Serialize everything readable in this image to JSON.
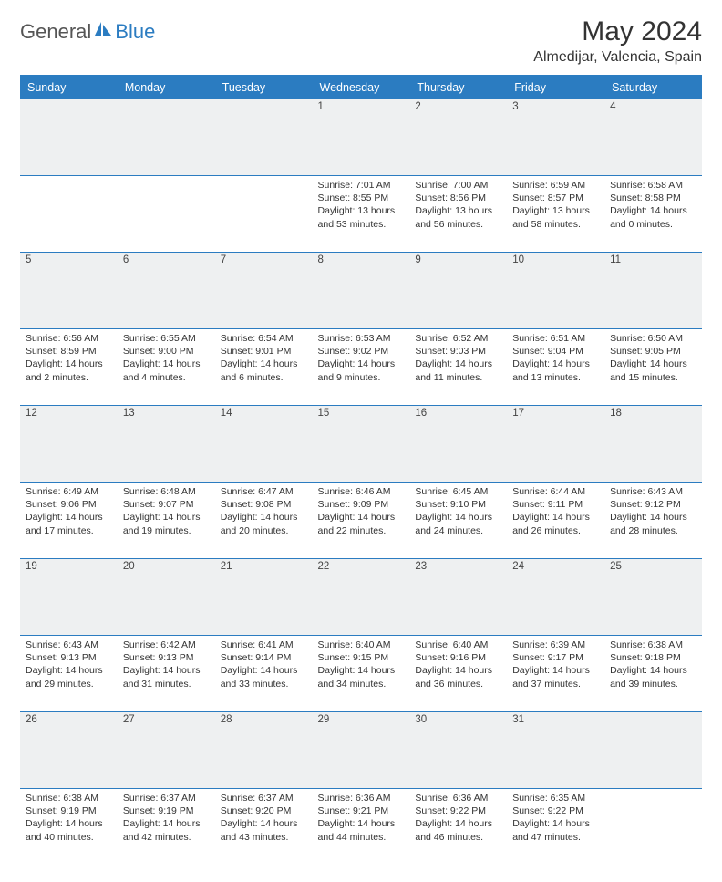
{
  "brand": {
    "part1": "General",
    "part2": "Blue"
  },
  "title": "May 2024",
  "location": "Almedijar, Valencia, Spain",
  "colors": {
    "header_bg": "#2b7cc1",
    "daynum_bg": "#eef0f1",
    "rule": "#2b7cc1",
    "text": "#333333"
  },
  "dow": [
    "Sunday",
    "Monday",
    "Tuesday",
    "Wednesday",
    "Thursday",
    "Friday",
    "Saturday"
  ],
  "weeks": [
    [
      {
        "n": "",
        "sr": "",
        "ss": "",
        "dl": ""
      },
      {
        "n": "",
        "sr": "",
        "ss": "",
        "dl": ""
      },
      {
        "n": "",
        "sr": "",
        "ss": "",
        "dl": ""
      },
      {
        "n": "1",
        "sr": "Sunrise: 7:01 AM",
        "ss": "Sunset: 8:55 PM",
        "dl": "Daylight: 13 hours and 53 minutes."
      },
      {
        "n": "2",
        "sr": "Sunrise: 7:00 AM",
        "ss": "Sunset: 8:56 PM",
        "dl": "Daylight: 13 hours and 56 minutes."
      },
      {
        "n": "3",
        "sr": "Sunrise: 6:59 AM",
        "ss": "Sunset: 8:57 PM",
        "dl": "Daylight: 13 hours and 58 minutes."
      },
      {
        "n": "4",
        "sr": "Sunrise: 6:58 AM",
        "ss": "Sunset: 8:58 PM",
        "dl": "Daylight: 14 hours and 0 minutes."
      }
    ],
    [
      {
        "n": "5",
        "sr": "Sunrise: 6:56 AM",
        "ss": "Sunset: 8:59 PM",
        "dl": "Daylight: 14 hours and 2 minutes."
      },
      {
        "n": "6",
        "sr": "Sunrise: 6:55 AM",
        "ss": "Sunset: 9:00 PM",
        "dl": "Daylight: 14 hours and 4 minutes."
      },
      {
        "n": "7",
        "sr": "Sunrise: 6:54 AM",
        "ss": "Sunset: 9:01 PM",
        "dl": "Daylight: 14 hours and 6 minutes."
      },
      {
        "n": "8",
        "sr": "Sunrise: 6:53 AM",
        "ss": "Sunset: 9:02 PM",
        "dl": "Daylight: 14 hours and 9 minutes."
      },
      {
        "n": "9",
        "sr": "Sunrise: 6:52 AM",
        "ss": "Sunset: 9:03 PM",
        "dl": "Daylight: 14 hours and 11 minutes."
      },
      {
        "n": "10",
        "sr": "Sunrise: 6:51 AM",
        "ss": "Sunset: 9:04 PM",
        "dl": "Daylight: 14 hours and 13 minutes."
      },
      {
        "n": "11",
        "sr": "Sunrise: 6:50 AM",
        "ss": "Sunset: 9:05 PM",
        "dl": "Daylight: 14 hours and 15 minutes."
      }
    ],
    [
      {
        "n": "12",
        "sr": "Sunrise: 6:49 AM",
        "ss": "Sunset: 9:06 PM",
        "dl": "Daylight: 14 hours and 17 minutes."
      },
      {
        "n": "13",
        "sr": "Sunrise: 6:48 AM",
        "ss": "Sunset: 9:07 PM",
        "dl": "Daylight: 14 hours and 19 minutes."
      },
      {
        "n": "14",
        "sr": "Sunrise: 6:47 AM",
        "ss": "Sunset: 9:08 PM",
        "dl": "Daylight: 14 hours and 20 minutes."
      },
      {
        "n": "15",
        "sr": "Sunrise: 6:46 AM",
        "ss": "Sunset: 9:09 PM",
        "dl": "Daylight: 14 hours and 22 minutes."
      },
      {
        "n": "16",
        "sr": "Sunrise: 6:45 AM",
        "ss": "Sunset: 9:10 PM",
        "dl": "Daylight: 14 hours and 24 minutes."
      },
      {
        "n": "17",
        "sr": "Sunrise: 6:44 AM",
        "ss": "Sunset: 9:11 PM",
        "dl": "Daylight: 14 hours and 26 minutes."
      },
      {
        "n": "18",
        "sr": "Sunrise: 6:43 AM",
        "ss": "Sunset: 9:12 PM",
        "dl": "Daylight: 14 hours and 28 minutes."
      }
    ],
    [
      {
        "n": "19",
        "sr": "Sunrise: 6:43 AM",
        "ss": "Sunset: 9:13 PM",
        "dl": "Daylight: 14 hours and 29 minutes."
      },
      {
        "n": "20",
        "sr": "Sunrise: 6:42 AM",
        "ss": "Sunset: 9:13 PM",
        "dl": "Daylight: 14 hours and 31 minutes."
      },
      {
        "n": "21",
        "sr": "Sunrise: 6:41 AM",
        "ss": "Sunset: 9:14 PM",
        "dl": "Daylight: 14 hours and 33 minutes."
      },
      {
        "n": "22",
        "sr": "Sunrise: 6:40 AM",
        "ss": "Sunset: 9:15 PM",
        "dl": "Daylight: 14 hours and 34 minutes."
      },
      {
        "n": "23",
        "sr": "Sunrise: 6:40 AM",
        "ss": "Sunset: 9:16 PM",
        "dl": "Daylight: 14 hours and 36 minutes."
      },
      {
        "n": "24",
        "sr": "Sunrise: 6:39 AM",
        "ss": "Sunset: 9:17 PM",
        "dl": "Daylight: 14 hours and 37 minutes."
      },
      {
        "n": "25",
        "sr": "Sunrise: 6:38 AM",
        "ss": "Sunset: 9:18 PM",
        "dl": "Daylight: 14 hours and 39 minutes."
      }
    ],
    [
      {
        "n": "26",
        "sr": "Sunrise: 6:38 AM",
        "ss": "Sunset: 9:19 PM",
        "dl": "Daylight: 14 hours and 40 minutes."
      },
      {
        "n": "27",
        "sr": "Sunrise: 6:37 AM",
        "ss": "Sunset: 9:19 PM",
        "dl": "Daylight: 14 hours and 42 minutes."
      },
      {
        "n": "28",
        "sr": "Sunrise: 6:37 AM",
        "ss": "Sunset: 9:20 PM",
        "dl": "Daylight: 14 hours and 43 minutes."
      },
      {
        "n": "29",
        "sr": "Sunrise: 6:36 AM",
        "ss": "Sunset: 9:21 PM",
        "dl": "Daylight: 14 hours and 44 minutes."
      },
      {
        "n": "30",
        "sr": "Sunrise: 6:36 AM",
        "ss": "Sunset: 9:22 PM",
        "dl": "Daylight: 14 hours and 46 minutes."
      },
      {
        "n": "31",
        "sr": "Sunrise: 6:35 AM",
        "ss": "Sunset: 9:22 PM",
        "dl": "Daylight: 14 hours and 47 minutes."
      },
      {
        "n": "",
        "sr": "",
        "ss": "",
        "dl": ""
      }
    ]
  ]
}
